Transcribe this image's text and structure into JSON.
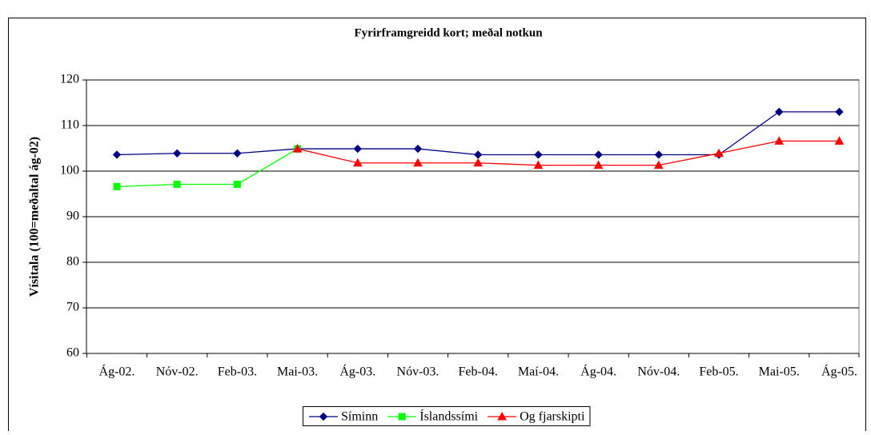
{
  "chart_data": {
    "type": "line",
    "title": "Fyrirframgreidd kort; meðal notkun",
    "y_label": "Vísitala (100=meðaltal ág-02)",
    "categories": [
      "Ág-02.",
      "Nóv-02.",
      "Feb-03.",
      "Mai-03.",
      "Ág-03.",
      "Nóv-03.",
      "Feb-04.",
      "Maí-04.",
      "Ág-04.",
      "Nóv-04.",
      "Feb-05.",
      "Mai-05.",
      "Ág-05."
    ],
    "series": [
      {
        "name": "Síminn",
        "color": "#000080",
        "marker": "diamond",
        "values": [
          103.6,
          103.9,
          103.9,
          104.9,
          104.9,
          104.9,
          103.6,
          103.6,
          103.6,
          103.6,
          103.6,
          113,
          113
        ]
      },
      {
        "name": "Íslandssími",
        "color": "#00ff00",
        "marker": "square",
        "values": [
          96.6,
          97.1,
          97.1,
          104.9,
          null,
          null,
          null,
          null,
          null,
          null,
          null,
          null,
          null
        ]
      },
      {
        "name": "Og fjarskipti",
        "color": "#ff0000",
        "marker": "triangle",
        "values": [
          null,
          null,
          null,
          104.9,
          101.8,
          101.8,
          101.8,
          101.3,
          101.3,
          101.3,
          103.9,
          106.6,
          106.6
        ]
      }
    ],
    "ylim": [
      60,
      120
    ],
    "yticks": [
      60,
      70,
      80,
      90,
      100,
      110,
      120
    ],
    "grid": true,
    "legend": "bottom"
  }
}
